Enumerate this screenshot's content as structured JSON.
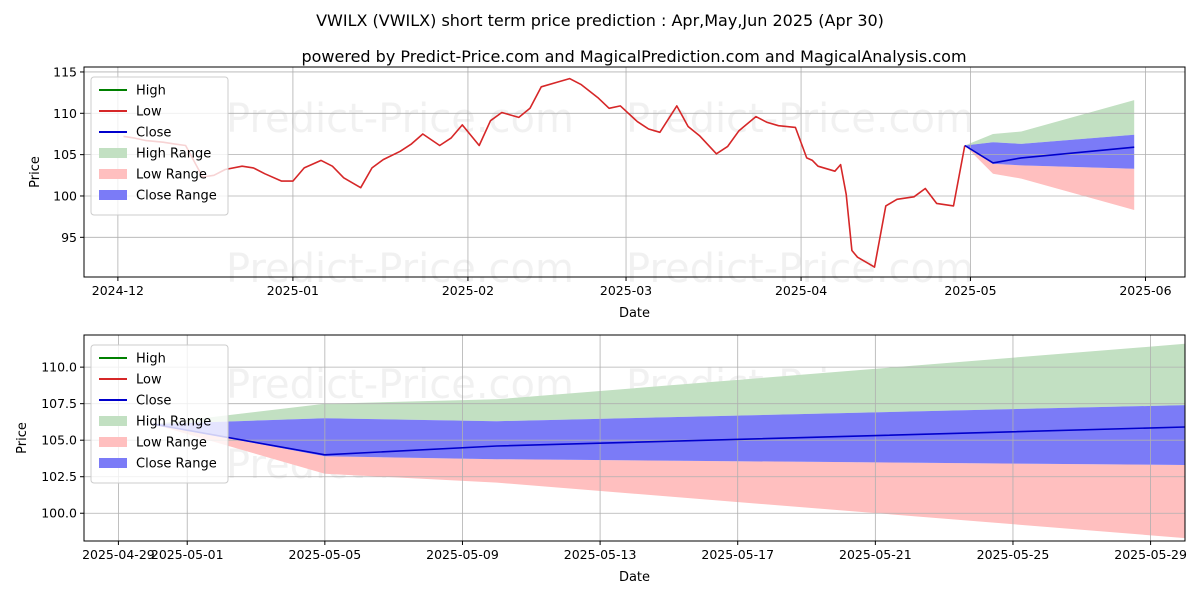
{
  "chart_data": [
    {
      "type": "line",
      "title": "VWILX (VWILX) short term price prediction : Apr,May,Jun 2025 (Apr 30)",
      "subtitle": "powered by Predict-Price.com and MagicalPrediction.com and MagicalAnalysis.com",
      "xlabel": "Date",
      "ylabel": "Price",
      "watermark": "Predict-Price.com",
      "grid": true,
      "legend_position": "top-left",
      "xlim": [
        "2024-11-25",
        "2025-06-08"
      ],
      "ylim": [
        90.2,
        115.6
      ],
      "x_ticks": [
        "2024-12",
        "2025-01",
        "2025-02",
        "2025-03",
        "2025-04",
        "2025-05",
        "2025-06"
      ],
      "y_ticks": [
        95,
        100,
        105,
        110,
        115
      ],
      "legend": [
        {
          "label": "High",
          "kind": "line",
          "color": "#008000"
        },
        {
          "label": "Low",
          "kind": "line",
          "color": "#d62728"
        },
        {
          "label": "Close",
          "kind": "line",
          "color": "#0000cc"
        },
        {
          "label": "High Range",
          "kind": "patch",
          "color": "#c2e0c2"
        },
        {
          "label": "Low Range",
          "kind": "patch",
          "color": "#ffbfbf"
        },
        {
          "label": "Close Range",
          "kind": "patch",
          "color": "#7b7bf7"
        }
      ],
      "series": [
        {
          "name": "Low",
          "color": "#d62728",
          "x": [
            "2024-12-02",
            "2024-12-04",
            "2024-12-06",
            "2024-12-09",
            "2024-12-11",
            "2024-12-13",
            "2024-12-16",
            "2024-12-18",
            "2024-12-20",
            "2024-12-23",
            "2024-12-25",
            "2024-12-27",
            "2024-12-30",
            "2025-01-01",
            "2025-01-03",
            "2025-01-06",
            "2025-01-08",
            "2025-01-10",
            "2025-01-13",
            "2025-01-15",
            "2025-01-17",
            "2025-01-20",
            "2025-01-22",
            "2025-01-24",
            "2025-01-27",
            "2025-01-29",
            "2025-01-31",
            "2025-02-03",
            "2025-02-05",
            "2025-02-07",
            "2025-02-10",
            "2025-02-12",
            "2025-02-14",
            "2025-02-17",
            "2025-02-19",
            "2025-02-21",
            "2025-02-24",
            "2025-02-26",
            "2025-02-28",
            "2025-03-03",
            "2025-03-05",
            "2025-03-07",
            "2025-03-10",
            "2025-03-12",
            "2025-03-14",
            "2025-03-17",
            "2025-03-19",
            "2025-03-21",
            "2025-03-24",
            "2025-03-26",
            "2025-03-28",
            "2025-03-31",
            "2025-04-02",
            "2025-04-03",
            "2025-04-04",
            "2025-04-07",
            "2025-04-08",
            "2025-04-09",
            "2025-04-10",
            "2025-04-11",
            "2025-04-14",
            "2025-04-16",
            "2025-04-18",
            "2025-04-21",
            "2025-04-23",
            "2025-04-25",
            "2025-04-28",
            "2025-04-30"
          ],
          "values": [
            107.2,
            107.0,
            106.7,
            106.5,
            106.3,
            106.1,
            102.3,
            102.5,
            103.2,
            103.6,
            103.4,
            102.7,
            101.8,
            101.8,
            103.4,
            104.3,
            103.6,
            102.2,
            101.0,
            103.4,
            104.4,
            105.4,
            106.3,
            107.5,
            106.1,
            107.0,
            108.6,
            106.1,
            109.1,
            110.1,
            109.5,
            110.6,
            113.2,
            113.8,
            114.2,
            113.5,
            111.9,
            110.6,
            110.9,
            109.0,
            108.1,
            107.7,
            110.9,
            108.4,
            107.3,
            105.1,
            106.0,
            107.9,
            109.6,
            108.9,
            108.5,
            108.3,
            104.6,
            104.3,
            103.6,
            103.0,
            103.8,
            100.2,
            93.4,
            92.6,
            91.4,
            98.8,
            99.6,
            99.9,
            100.9,
            99.1,
            98.8,
            106.1
          ]
        },
        {
          "name": "Close",
          "color": "#0000cc",
          "x": [
            "2025-04-30",
            "2025-05-05",
            "2025-05-10",
            "2025-05-30"
          ],
          "values": [
            106.1,
            104.0,
            104.6,
            105.9
          ]
        }
      ],
      "ranges": [
        {
          "name": "High Range",
          "color": "#c2e0c2",
          "x": [
            "2025-04-30",
            "2025-05-05",
            "2025-05-10",
            "2025-05-30"
          ],
          "lower": [
            106.1,
            106.5,
            106.3,
            107.4
          ],
          "upper": [
            106.1,
            107.5,
            107.8,
            111.6
          ]
        },
        {
          "name": "Low Range",
          "color": "#ffbfbf",
          "x": [
            "2025-04-30",
            "2025-05-05",
            "2025-05-10",
            "2025-05-30"
          ],
          "lower": [
            106.1,
            102.7,
            102.1,
            98.3
          ],
          "upper": [
            106.1,
            103.9,
            103.7,
            103.3
          ]
        },
        {
          "name": "Close Range",
          "color": "#7b7bf7",
          "x": [
            "2025-04-30",
            "2025-05-05",
            "2025-05-10",
            "2025-05-30"
          ],
          "lower": [
            106.1,
            103.9,
            103.7,
            103.3
          ],
          "upper": [
            106.1,
            106.5,
            106.3,
            107.4
          ]
        }
      ]
    },
    {
      "type": "line",
      "xlabel": "Date",
      "ylabel": "Price",
      "watermark": "Predict-Price.com",
      "grid": true,
      "legend_position": "top-left",
      "xlim": [
        "2025-04-28",
        "2025-05-30"
      ],
      "ylim": [
        98.1,
        112.2
      ],
      "x_ticks": [
        "2025-04-29",
        "2025-05-01",
        "2025-05-05",
        "2025-05-09",
        "2025-05-13",
        "2025-05-17",
        "2025-05-21",
        "2025-05-25",
        "2025-05-29"
      ],
      "y_ticks": [
        100.0,
        102.5,
        105.0,
        107.5,
        110.0
      ],
      "legend": [
        {
          "label": "High",
          "kind": "line",
          "color": "#008000"
        },
        {
          "label": "Low",
          "kind": "line",
          "color": "#d62728"
        },
        {
          "label": "Close",
          "kind": "line",
          "color": "#0000cc"
        },
        {
          "label": "High Range",
          "kind": "patch",
          "color": "#c2e0c2"
        },
        {
          "label": "Low Range",
          "kind": "patch",
          "color": "#ffbfbf"
        },
        {
          "label": "Close Range",
          "kind": "patch",
          "color": "#7b7bf7"
        }
      ],
      "series": [
        {
          "name": "Close",
          "color": "#0000cc",
          "x": [
            "2025-04-30",
            "2025-05-05",
            "2025-05-10",
            "2025-05-30"
          ],
          "values": [
            106.1,
            104.0,
            104.6,
            105.9
          ]
        }
      ],
      "ranges": [
        {
          "name": "High Range",
          "color": "#c2e0c2",
          "x": [
            "2025-04-30",
            "2025-05-05",
            "2025-05-10",
            "2025-05-30"
          ],
          "lower": [
            106.1,
            106.5,
            106.3,
            107.4
          ],
          "upper": [
            106.1,
            107.5,
            107.8,
            111.6
          ]
        },
        {
          "name": "Low Range",
          "color": "#ffbfbf",
          "x": [
            "2025-04-30",
            "2025-05-05",
            "2025-05-10",
            "2025-05-30"
          ],
          "lower": [
            106.1,
            102.7,
            102.1,
            98.3
          ],
          "upper": [
            106.1,
            103.9,
            103.7,
            103.3
          ]
        },
        {
          "name": "Close Range",
          "color": "#7b7bf7",
          "x": [
            "2025-04-30",
            "2025-05-05",
            "2025-05-10",
            "2025-05-30"
          ],
          "lower": [
            106.1,
            103.9,
            103.7,
            103.3
          ],
          "upper": [
            106.1,
            106.5,
            106.3,
            107.4
          ]
        }
      ]
    }
  ]
}
